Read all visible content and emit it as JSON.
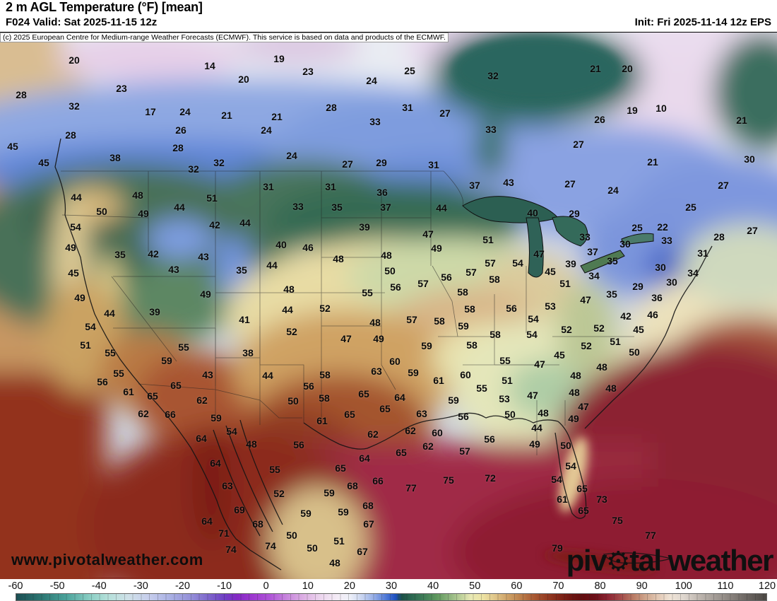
{
  "header": {
    "title": "2 m AGL Temperature (°F) [mean]",
    "valid": "F024 Valid: Sat 2025-11-15 12z",
    "init": "Init: Fri 2025-11-14 12z EPS"
  },
  "copyright": "(c) 2025 European Centre for Medium-range Weather Forecasts (ECMWF). This service is based on data and products of the ECMWF.",
  "watermark": "www.pivotalweather.com",
  "logo": {
    "pre": "piv",
    "gear_icon": "gear",
    "post": "tal weather"
  },
  "colorbar": {
    "ticks": [
      -60,
      -50,
      -40,
      -30,
      -20,
      -10,
      0,
      10,
      20,
      30,
      40,
      50,
      60,
      70,
      80,
      90,
      100,
      110,
      120
    ],
    "min": -60,
    "max": 120,
    "stops": [
      [
        -60,
        "#1b4f54"
      ],
      [
        -54,
        "#2c7672"
      ],
      [
        -48,
        "#4ba39b"
      ],
      [
        -42,
        "#8ed0c6"
      ],
      [
        -38,
        "#b5e0da"
      ],
      [
        -33,
        "#cfe0e8"
      ],
      [
        -28,
        "#c6cdec"
      ],
      [
        -23,
        "#aab1e4"
      ],
      [
        -18,
        "#948fd8"
      ],
      [
        -14,
        "#7f68cc"
      ],
      [
        -10,
        "#6f3fc4"
      ],
      [
        -7,
        "#8429c4"
      ],
      [
        -3,
        "#9f3ad0"
      ],
      [
        1,
        "#b056d8"
      ],
      [
        5,
        "#c887dd"
      ],
      [
        9,
        "#ddb0e4"
      ],
      [
        13,
        "#ecd5ee"
      ],
      [
        17,
        "#f4ecf6"
      ],
      [
        20,
        "#eef0f8"
      ],
      [
        23,
        "#c8d4f0"
      ],
      [
        26,
        "#92abe6"
      ],
      [
        29,
        "#4a74d4"
      ],
      [
        31,
        "#1d50c0"
      ],
      [
        32.5,
        "#1c4f46"
      ],
      [
        35,
        "#2c6851"
      ],
      [
        38,
        "#417f58"
      ],
      [
        41,
        "#61995f"
      ],
      [
        44,
        "#8fb57f"
      ],
      [
        47,
        "#c3d49e"
      ],
      [
        49,
        "#e8e8b4"
      ],
      [
        52,
        "#ede3a4"
      ],
      [
        55,
        "#dfc488"
      ],
      [
        58,
        "#cda167"
      ],
      [
        61,
        "#bc7f4b"
      ],
      [
        64,
        "#aa5c35"
      ],
      [
        67,
        "#973f24"
      ],
      [
        70,
        "#832819"
      ],
      [
        73,
        "#701712"
      ],
      [
        76,
        "#620d10"
      ],
      [
        79,
        "#6d1018"
      ],
      [
        82,
        "#8c2432"
      ],
      [
        85,
        "#a34a4a"
      ],
      [
        88,
        "#b87a64"
      ],
      [
        91,
        "#cfa58c"
      ],
      [
        94,
        "#e2c8b4"
      ],
      [
        97,
        "#efe3d6"
      ],
      [
        100,
        "#e0d8d0"
      ],
      [
        104,
        "#bdb5ae"
      ],
      [
        110,
        "#948d88"
      ],
      [
        115,
        "#6e6864"
      ],
      [
        120,
        "#4c4844"
      ]
    ]
  },
  "map": {
    "labels": [
      [
        20,
        105,
        84
      ],
      [
        14,
        297,
        92
      ],
      [
        23,
        172,
        124
      ],
      [
        20,
        345,
        111
      ],
      [
        28,
        30,
        133
      ],
      [
        32,
        105,
        149
      ],
      [
        17,
        213,
        157
      ],
      [
        24,
        262,
        157
      ],
      [
        21,
        321,
        162
      ],
      [
        26,
        256,
        183
      ],
      [
        28,
        100,
        190
      ],
      [
        28,
        252,
        208
      ],
      [
        45,
        18,
        206
      ],
      [
        38,
        163,
        222
      ],
      [
        45,
        62,
        229
      ],
      [
        32,
        310,
        229
      ],
      [
        32,
        274,
        238
      ],
      [
        19,
        395,
        82
      ],
      [
        23,
        436,
        100
      ],
      [
        25,
        580,
        99
      ],
      [
        32,
        698,
        106
      ],
      [
        24,
        526,
        113
      ],
      [
        28,
        469,
        151
      ],
      [
        21,
        392,
        164
      ],
      [
        31,
        577,
        151
      ],
      [
        33,
        531,
        171
      ],
      [
        27,
        630,
        159
      ],
      [
        24,
        377,
        183
      ],
      [
        33,
        695,
        182
      ],
      [
        24,
        413,
        219
      ],
      [
        27,
        492,
        231
      ],
      [
        29,
        540,
        229
      ],
      [
        31,
        614,
        232
      ],
      [
        21,
        843,
        96
      ],
      [
        20,
        888,
        96
      ],
      [
        19,
        895,
        155
      ],
      [
        10,
        936,
        152
      ],
      [
        26,
        849,
        168
      ],
      [
        21,
        1050,
        169
      ],
      [
        27,
        819,
        203
      ],
      [
        21,
        924,
        228
      ],
      [
        30,
        1061,
        224
      ],
      [
        44,
        108,
        278
      ],
      [
        48,
        195,
        275
      ],
      [
        51,
        300,
        279
      ],
      [
        44,
        254,
        292
      ],
      [
        50,
        144,
        298
      ],
      [
        49,
        203,
        301
      ],
      [
        54,
        107,
        320
      ],
      [
        42,
        304,
        317
      ],
      [
        44,
        347,
        314
      ],
      [
        49,
        100,
        349
      ],
      [
        35,
        170,
        359
      ],
      [
        42,
        217,
        358
      ],
      [
        43,
        288,
        362
      ],
      [
        43,
        246,
        380
      ],
      [
        35,
        342,
        381
      ],
      [
        45,
        104,
        385
      ],
      [
        49,
        113,
        420
      ],
      [
        49,
        291,
        415
      ],
      [
        31,
        380,
        263
      ],
      [
        31,
        468,
        263
      ],
      [
        36,
        541,
        271
      ],
      [
        37,
        672,
        261
      ],
      [
        43,
        720,
        257
      ],
      [
        33,
        422,
        291
      ],
      [
        35,
        477,
        292
      ],
      [
        37,
        546,
        292
      ],
      [
        44,
        625,
        293
      ],
      [
        39,
        516,
        320
      ],
      [
        47,
        606,
        330
      ],
      [
        51,
        691,
        338
      ],
      [
        40,
        398,
        345
      ],
      [
        46,
        436,
        349
      ],
      [
        49,
        618,
        350
      ],
      [
        48,
        547,
        360
      ],
      [
        48,
        479,
        365
      ],
      [
        44,
        385,
        374
      ],
      [
        50,
        552,
        382
      ],
      [
        57,
        694,
        371
      ],
      [
        54,
        733,
        371
      ],
      [
        57,
        667,
        384
      ],
      [
        56,
        632,
        391
      ],
      [
        58,
        700,
        394
      ],
      [
        48,
        409,
        408
      ],
      [
        57,
        599,
        400
      ],
      [
        56,
        560,
        405
      ],
      [
        55,
        520,
        413
      ],
      [
        58,
        655,
        412
      ],
      [
        27,
        807,
        259
      ],
      [
        24,
        868,
        268
      ],
      [
        27,
        1024,
        261
      ],
      [
        25,
        978,
        292
      ],
      [
        40,
        754,
        300
      ],
      [
        29,
        813,
        301
      ],
      [
        25,
        902,
        321
      ],
      [
        22,
        938,
        320
      ],
      [
        27,
        1065,
        325
      ],
      [
        33,
        828,
        334
      ],
      [
        28,
        1018,
        334
      ],
      [
        30,
        885,
        344
      ],
      [
        33,
        944,
        339
      ],
      [
        31,
        995,
        357
      ],
      [
        47,
        763,
        358
      ],
      [
        37,
        839,
        355
      ],
      [
        39,
        808,
        372
      ],
      [
        35,
        867,
        368
      ],
      [
        30,
        935,
        377
      ],
      [
        45,
        779,
        383
      ],
      [
        34,
        981,
        385
      ],
      [
        34,
        841,
        389
      ],
      [
        51,
        800,
        400
      ],
      [
        30,
        951,
        398
      ],
      [
        29,
        903,
        404
      ],
      [
        35,
        866,
        415
      ],
      [
        36,
        930,
        420
      ],
      [
        47,
        829,
        423
      ],
      [
        44,
        155,
        442
      ],
      [
        39,
        219,
        440
      ],
      [
        41,
        346,
        451
      ],
      [
        54,
        128,
        461
      ],
      [
        51,
        121,
        487
      ],
      [
        55,
        260,
        490
      ],
      [
        38,
        351,
        498
      ],
      [
        55,
        156,
        498
      ],
      [
        59,
        236,
        509
      ],
      [
        43,
        294,
        529
      ],
      [
        55,
        168,
        527
      ],
      [
        56,
        145,
        539
      ],
      [
        65,
        249,
        544
      ],
      [
        61,
        182,
        553
      ],
      [
        65,
        216,
        559
      ],
      [
        62,
        286,
        565
      ],
      [
        62,
        203,
        584
      ],
      [
        66,
        241,
        585
      ],
      [
        59,
        306,
        590
      ],
      [
        54,
        328,
        609
      ],
      [
        64,
        285,
        619
      ],
      [
        44,
        407,
        437
      ],
      [
        52,
        460,
        435
      ],
      [
        58,
        665,
        436
      ],
      [
        56,
        724,
        435
      ],
      [
        48,
        531,
        455
      ],
      [
        57,
        583,
        451
      ],
      [
        58,
        622,
        453
      ],
      [
        52,
        413,
        468
      ],
      [
        59,
        656,
        460
      ],
      [
        47,
        490,
        478
      ],
      [
        49,
        536,
        478
      ],
      [
        58,
        701,
        472
      ],
      [
        58,
        668,
        487
      ],
      [
        59,
        604,
        488
      ],
      [
        55,
        715,
        509
      ],
      [
        60,
        559,
        510
      ],
      [
        44,
        379,
        530
      ],
      [
        63,
        533,
        524
      ],
      [
        59,
        585,
        526
      ],
      [
        58,
        460,
        529
      ],
      [
        61,
        621,
        537
      ],
      [
        60,
        659,
        529
      ],
      [
        56,
        437,
        545
      ],
      [
        55,
        682,
        548
      ],
      [
        51,
        718,
        537
      ],
      [
        65,
        515,
        556
      ],
      [
        64,
        566,
        561
      ],
      [
        50,
        415,
        566
      ],
      [
        58,
        459,
        562
      ],
      [
        59,
        642,
        565
      ],
      [
        53,
        714,
        563
      ],
      [
        65,
        545,
        577
      ],
      [
        63,
        597,
        584
      ],
      [
        50,
        722,
        585
      ],
      [
        65,
        495,
        585
      ],
      [
        56,
        656,
        588
      ],
      [
        61,
        456,
        594
      ],
      [
        62,
        581,
        608
      ],
      [
        62,
        528,
        613
      ],
      [
        60,
        619,
        611
      ],
      [
        53,
        779,
        432
      ],
      [
        54,
        755,
        450
      ],
      [
        42,
        886,
        446
      ],
      [
        46,
        924,
        444
      ],
      [
        54,
        753,
        472
      ],
      [
        52,
        802,
        465
      ],
      [
        52,
        848,
        463
      ],
      [
        45,
        904,
        465
      ],
      [
        51,
        871,
        482
      ],
      [
        52,
        830,
        488
      ],
      [
        45,
        792,
        501
      ],
      [
        50,
        898,
        497
      ],
      [
        47,
        764,
        514
      ],
      [
        48,
        852,
        518
      ],
      [
        48,
        815,
        530
      ],
      [
        48,
        813,
        554
      ],
      [
        47,
        754,
        558
      ],
      [
        48,
        865,
        548
      ],
      [
        47,
        826,
        574
      ],
      [
        48,
        769,
        583
      ],
      [
        49,
        812,
        591
      ],
      [
        44,
        760,
        604
      ],
      [
        48,
        356,
        627
      ],
      [
        64,
        305,
        654
      ],
      [
        63,
        322,
        686
      ],
      [
        69,
        339,
        720
      ],
      [
        68,
        365,
        740
      ],
      [
        64,
        293,
        736
      ],
      [
        71,
        317,
        753
      ],
      [
        74,
        327,
        776
      ],
      [
        56,
        423,
        628
      ],
      [
        62,
        606,
        630
      ],
      [
        65,
        568,
        639
      ],
      [
        56,
        693,
        620
      ],
      [
        57,
        658,
        637
      ],
      [
        55,
        389,
        663
      ],
      [
        64,
        516,
        647
      ],
      [
        65,
        482,
        661
      ],
      [
        75,
        635,
        678
      ],
      [
        72,
        694,
        675
      ],
      [
        66,
        535,
        679
      ],
      [
        68,
        499,
        686
      ],
      [
        52,
        395,
        697
      ],
      [
        59,
        466,
        696
      ],
      [
        77,
        582,
        689
      ],
      [
        68,
        521,
        714
      ],
      [
        59,
        433,
        725
      ],
      [
        59,
        486,
        723
      ],
      [
        67,
        522,
        740
      ],
      [
        50,
        413,
        756
      ],
      [
        51,
        480,
        764
      ],
      [
        50,
        442,
        774
      ],
      [
        67,
        513,
        779
      ],
      [
        48,
        474,
        795
      ],
      [
        74,
        383,
        771
      ],
      [
        49,
        757,
        627
      ],
      [
        50,
        801,
        629
      ],
      [
        54,
        808,
        658
      ],
      [
        54,
        788,
        677
      ],
      [
        65,
        824,
        690
      ],
      [
        61,
        796,
        705
      ],
      [
        65,
        826,
        721
      ],
      [
        73,
        852,
        705
      ],
      [
        75,
        874,
        735
      ],
      [
        77,
        921,
        756
      ],
      [
        79,
        789,
        774
      ]
    ]
  }
}
